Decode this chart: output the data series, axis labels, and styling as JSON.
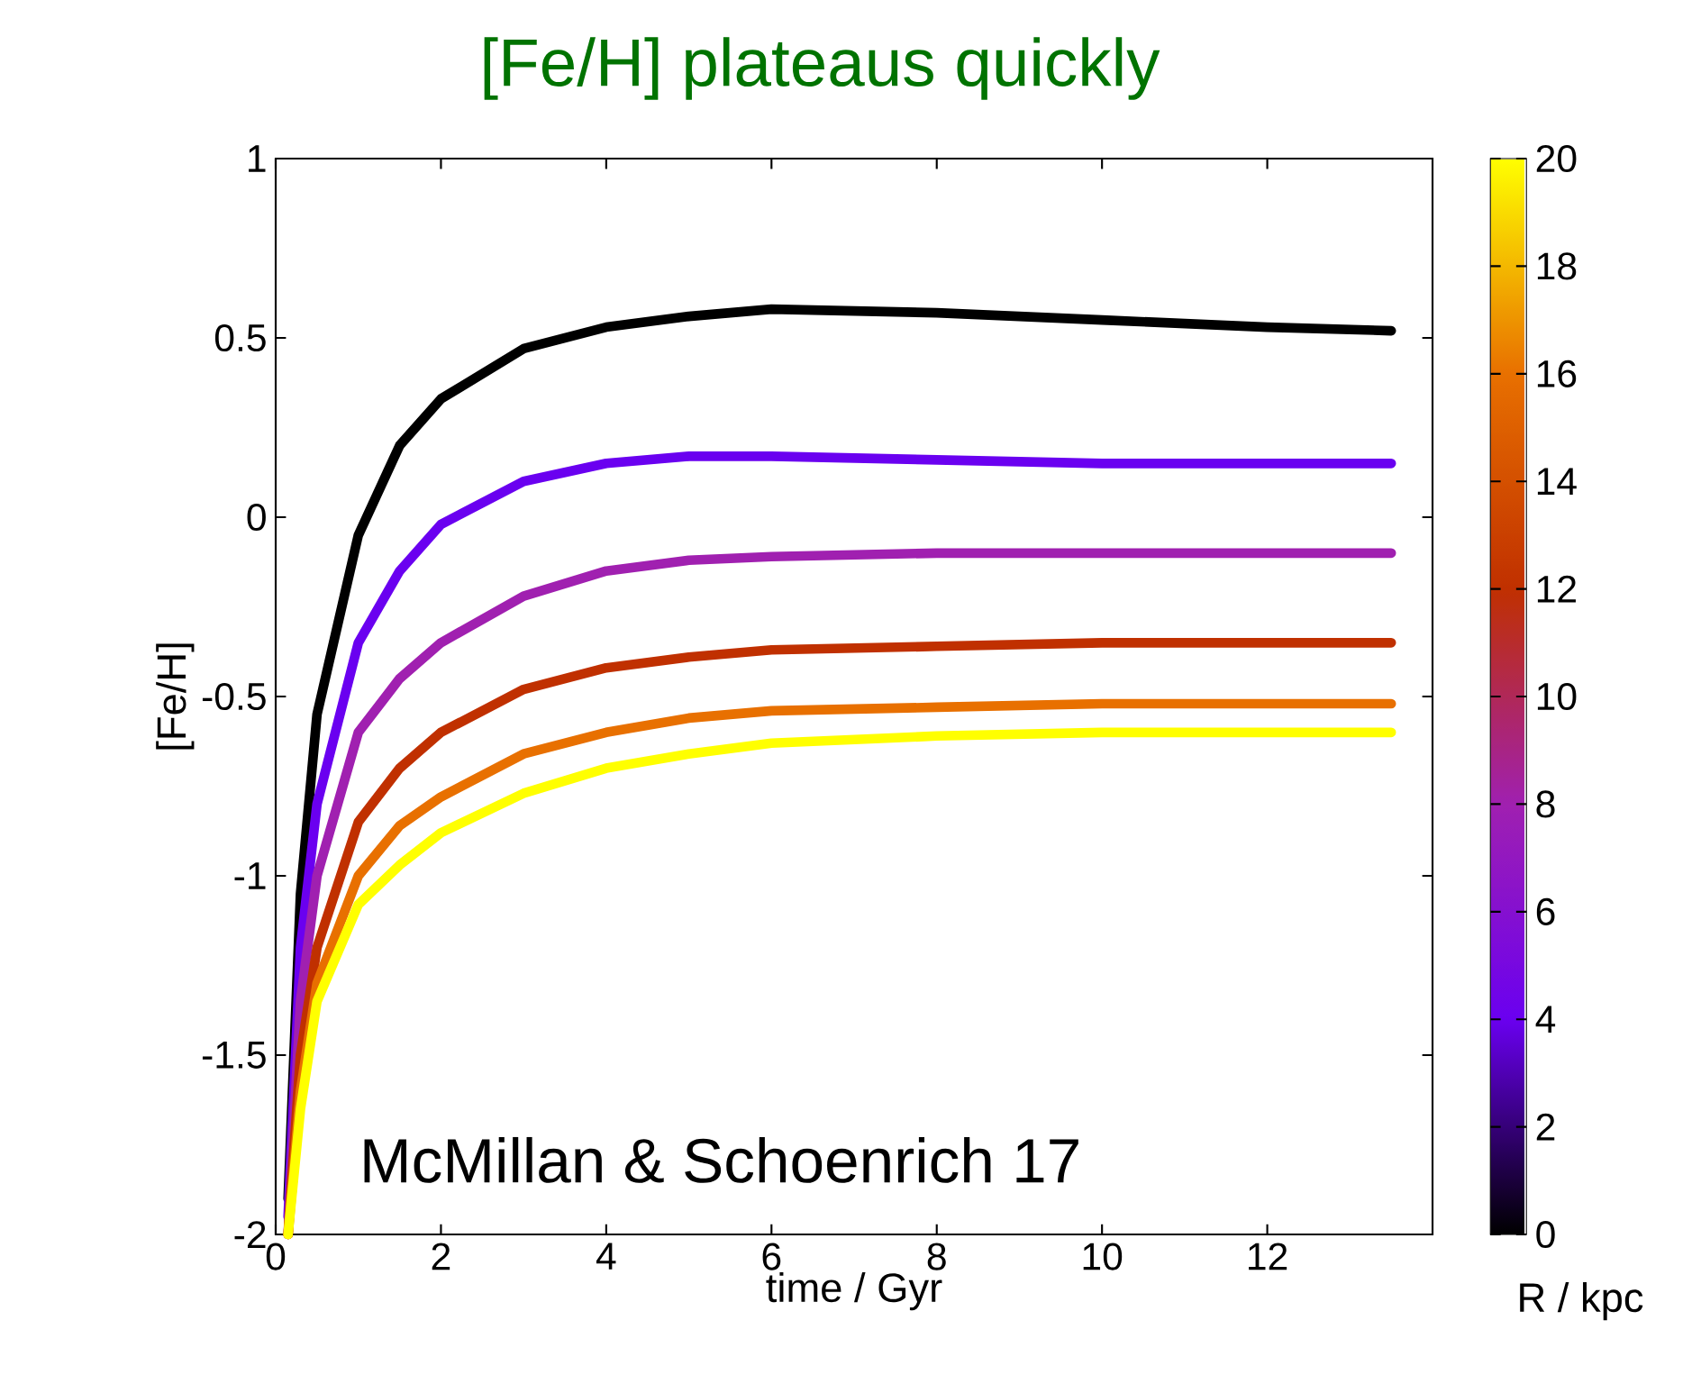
{
  "chart_data": {
    "type": "line",
    "title": "[Fe/H] plateaus quickly",
    "xlabel": "time / Gyr",
    "ylabel": "[Fe/H]",
    "clabel": "R / kpc",
    "annotations": [
      "McMillan & Schoenrich 17"
    ],
    "x": [
      0.15,
      0.3,
      0.5,
      1,
      1.5,
      2,
      3,
      4,
      5,
      6,
      8,
      10,
      12,
      13.5
    ],
    "series": [
      {
        "color": "#000000",
        "values": [
          -1.9,
          -1.05,
          -0.55,
          -0.05,
          0.2,
          0.33,
          0.47,
          0.53,
          0.56,
          0.58,
          0.57,
          0.55,
          0.53,
          0.52
        ]
      },
      {
        "color": "#6a00f0",
        "values": [
          -1.95,
          -1.2,
          -0.8,
          -0.35,
          -0.15,
          -0.02,
          0.1,
          0.15,
          0.17,
          0.17,
          0.16,
          0.15,
          0.15,
          0.15
        ]
      },
      {
        "color": "#a020b0",
        "values": [
          -2,
          -1.35,
          -1.0,
          -0.6,
          -0.45,
          -0.35,
          -0.22,
          -0.15,
          -0.12,
          -0.11,
          -0.1,
          -0.1,
          -0.1,
          -0.1
        ]
      },
      {
        "color": "#c03000",
        "values": [
          -2,
          -1.5,
          -1.2,
          -0.85,
          -0.7,
          -0.6,
          -0.48,
          -0.42,
          -0.39,
          -0.37,
          -0.36,
          -0.35,
          -0.35,
          -0.35
        ]
      },
      {
        "color": "#e87000",
        "values": [
          -2,
          -1.6,
          -1.3,
          -1.0,
          -0.86,
          -0.78,
          -0.66,
          -0.6,
          -0.56,
          -0.54,
          -0.53,
          -0.52,
          -0.52,
          -0.52
        ]
      },
      {
        "color": "#ffff00",
        "values": [
          -2,
          -1.65,
          -1.35,
          -1.08,
          -0.97,
          -0.88,
          -0.77,
          -0.7,
          -0.66,
          -0.63,
          -0.61,
          -0.6,
          -0.6,
          -0.6
        ]
      }
    ],
    "xlim": [
      0,
      14
    ],
    "xticks": [
      0,
      2,
      4,
      6,
      8,
      10,
      12
    ],
    "ylim": [
      -2,
      1
    ],
    "yticks": [
      -2,
      -1.5,
      -1,
      -0.5,
      0,
      0.5,
      1
    ],
    "clim": [
      0,
      20
    ],
    "cticks": [
      0,
      2,
      4,
      6,
      8,
      10,
      12,
      14,
      16,
      18,
      20
    ]
  }
}
